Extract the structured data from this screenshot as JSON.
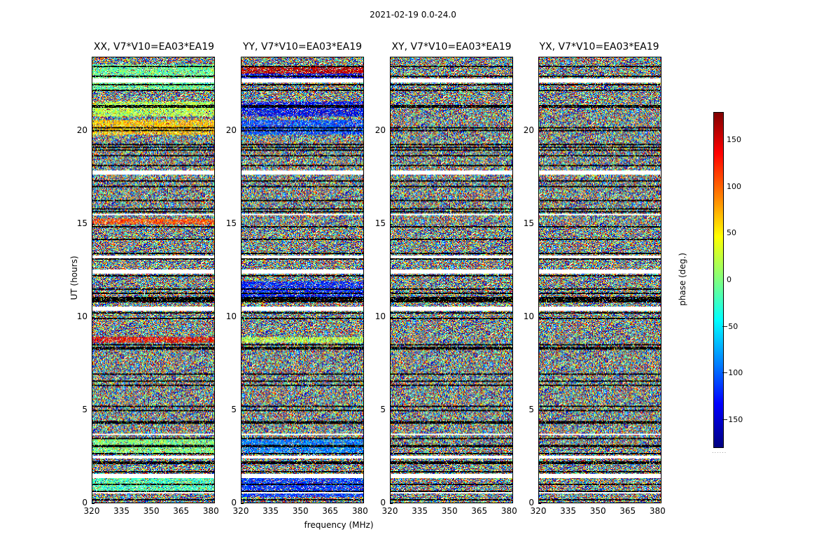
{
  "figure": {
    "suptitle": "2021-02-19 0.0-24.0"
  },
  "chart_data": {
    "type": "heatmap",
    "xlabel": "frequency (MHz)",
    "ylabel": "UT (hours)",
    "xlim": [
      320,
      382
    ],
    "ylim": [
      0,
      24
    ],
    "xticks": [
      "320",
      "335",
      "350",
      "365",
      "380"
    ],
    "yticks": [
      "0",
      "5",
      "10",
      "15",
      "20"
    ],
    "panels": [
      {
        "title": "XX, V7*V10=EA03*EA19",
        "pol": "XX"
      },
      {
        "title": "YY, V7*V10=EA03*EA19",
        "pol": "YY"
      },
      {
        "title": "XY, V7*V10=EA03*EA19",
        "pol": "XY"
      },
      {
        "title": "YX, V7*V10=EA03*EA19",
        "pol": "YX"
      }
    ],
    "colorbar": {
      "label": "phase (deg.)",
      "range": [
        -180,
        180
      ],
      "ticks": [
        "150",
        "100",
        "50",
        "0",
        "−50",
        "−100",
        "−150"
      ],
      "tick_values": [
        150,
        100,
        50,
        0,
        -50,
        -100,
        -150
      ],
      "colormap": "jet"
    },
    "flagged_bands_hours": [
      [
        0.45,
        0.55
      ],
      [
        1.3,
        1.55
      ],
      [
        2.4,
        2.5
      ],
      [
        3.6,
        3.7
      ],
      [
        10.3,
        10.5
      ],
      [
        12.3,
        12.6
      ],
      [
        13.2,
        13.3
      ],
      [
        15.5,
        15.6
      ],
      [
        17.7,
        17.9
      ],
      [
        22.6,
        22.8
      ]
    ]
  }
}
